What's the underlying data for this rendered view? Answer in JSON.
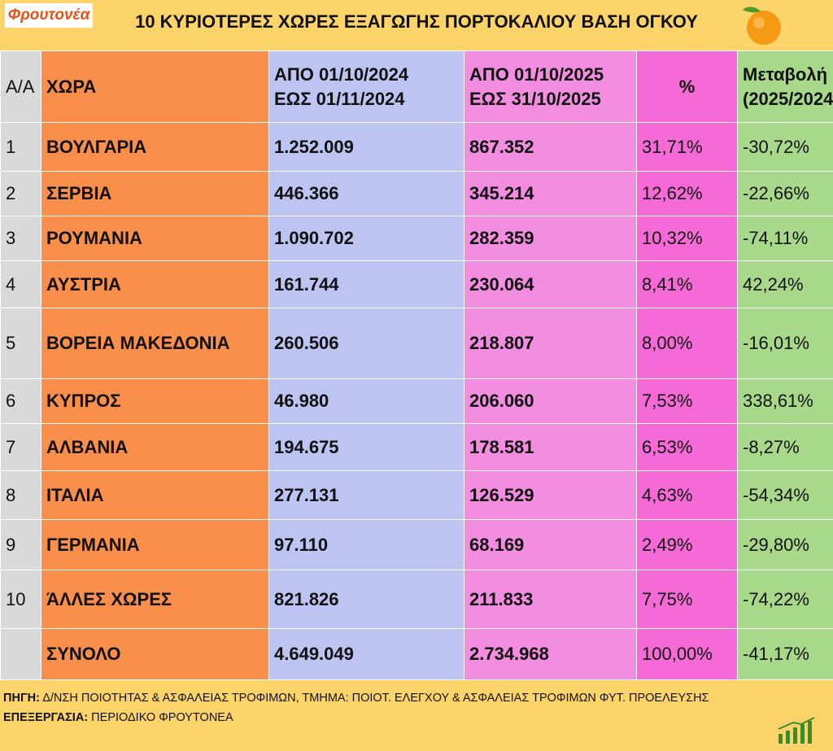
{
  "logo": "Φρουτονέα",
  "header": {
    "title": "10 ΚΥΡΙΟΤΕΡΕΣ ΧΩΡΕΣ ΕΞΑΓΩΓΗΣ ΠΟΡΤΟΚΑΛΙΟΥ ΒΑΣΗ ΟΓΚΟΥ"
  },
  "table": {
    "columns": [
      [
        "Α/Α"
      ],
      [
        "ΧΩΡΑ"
      ],
      [
        "ΑΠΟ 01/10/2024",
        "ΕΩΣ  01/11/2024"
      ],
      [
        "ΑΠΟ 01/10/2025",
        "ΕΩΣ  31/10/2025"
      ],
      [
        "%"
      ],
      [
        "Μεταβολή",
        "(2025/2024)"
      ]
    ],
    "rows": [
      [
        "1",
        "ΒΟΥΛΓΑΡΙΑ",
        "1.252.009",
        "867.352",
        "31,71%",
        "-30,72%"
      ],
      [
        "2",
        "ΣΕΡΒΙΑ",
        "446.366",
        "345.214",
        "12,62%",
        "-22,66%"
      ],
      [
        "3",
        "ΡΟΥΜΑΝΙΑ",
        "1.090.702",
        "282.359",
        "10,32%",
        "-74,11%"
      ],
      [
        "4",
        "ΑΥΣΤΡΙΑ",
        "161.744",
        "230.064",
        "8,41%",
        "42,24%"
      ],
      [
        "5",
        "ΒΟΡΕΙΑ ΜΑΚΕΔΟΝΙΑ",
        "260.506",
        "218.807",
        "8,00%",
        "-16,01%"
      ],
      [
        "6",
        "ΚΥΠΡΟΣ",
        "46.980",
        "206.060",
        "7,53%",
        "338,61%"
      ],
      [
        "7",
        "ΑΛΒΑΝΙΑ",
        "194.675",
        "178.581",
        "6,53%",
        "-8,27%"
      ],
      [
        "8",
        "ΙΤΑΛΙΑ",
        "277.131",
        "126.529",
        "4,63%",
        "-54,34%"
      ],
      [
        "9",
        "ΓΕΡΜΑΝΙΑ",
        "97.110",
        "68.169",
        "2,49%",
        "-29,80%"
      ],
      [
        "10",
        "ΆΛΛΕΣ ΧΩΡΕΣ",
        "821.826",
        "211.833",
        "7,75%",
        "-74,22%"
      ],
      [
        null,
        "ΣΥΝΟΛΟ",
        "4.649.049",
        "2.734.968",
        "100,00%",
        "-41,17%"
      ]
    ]
  },
  "footer": [
    {
      "label": "ΠΗΓΗ:",
      "text": "Δ/ΝΣΗ ΠΟΙΟΤΗΤΑΣ & ΑΣΦΑΛΕΙΑΣ ΤΡΟΦΙΜΩΝ, ΤΜΗΜΑ: ΠΟΙΟΤ. ΕΛΕΓΧΟΥ & ΑΣΦΑΛΕΙΑΣ ΤΡΟΦΙΜΩΝ ΦΥΤ. ΠΡΟΕΛΕΥΣΗΣ"
    },
    {
      "label": "ΕΠΕΞΕΡΓΑΣΙΑ:",
      "text": "ΠΕΡΙΟΔΙΚΟ ΦΡΟΥΤΟΝΕΑ"
    }
  ]
}
